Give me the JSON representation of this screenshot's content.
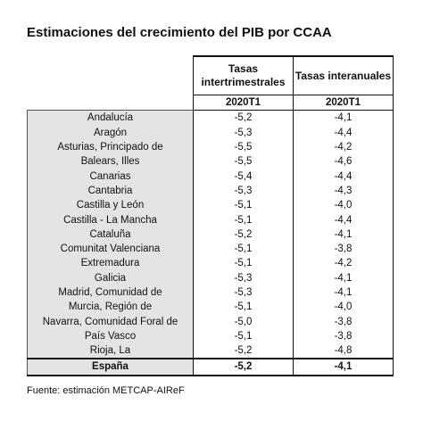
{
  "header": {
    "title": "Estimaciones del crecimiento del PIB por CCAA"
  },
  "table": {
    "columns": [
      {
        "label": "Tasas intertrimestrales",
        "period": "2020T1"
      },
      {
        "label": "Tasas interanuales",
        "period": "2020T1"
      }
    ],
    "rows": [
      [
        "Andalucía",
        "-5,2",
        "-4,1"
      ],
      [
        "Aragón",
        "-5,3",
        "-4,4"
      ],
      [
        "Asturias, Principado de",
        "-5,5",
        "-4,2"
      ],
      [
        "Balears, Illes",
        "-5,5",
        "-4,6"
      ],
      [
        "Canarias",
        "-5,4",
        "-4,4"
      ],
      [
        "Cantabria",
        "-5,3",
        "-4,3"
      ],
      [
        "Castilla y León",
        "-5,1",
        "-4,0"
      ],
      [
        "Castilla - La Mancha",
        "-5,1",
        "-4,4"
      ],
      [
        "Cataluña",
        "-5,2",
        "-4,1"
      ],
      [
        "Comunitat Valenciana",
        "-5,1",
        "-3,8"
      ],
      [
        "Extremadura",
        "-5,1",
        "-4,2"
      ],
      [
        "Galicia",
        "-5,3",
        "-4,1"
      ],
      [
        "Madrid, Comunidad de",
        "-5,3",
        "-4,1"
      ],
      [
        "Murcia, Región de",
        "-5,1",
        "-4,0"
      ],
      [
        "Navarra, Comunidad Foral de",
        "-5,0",
        "-3,8"
      ],
      [
        "País Vasco",
        "-5,1",
        "-3,8"
      ],
      [
        "Rioja, La",
        "-5,2",
        "-4,8"
      ]
    ],
    "total": [
      "España",
      "-5,2",
      "-4,1"
    ]
  },
  "footer": {
    "source": "Fuente: estimación METCAP-AIReF"
  }
}
